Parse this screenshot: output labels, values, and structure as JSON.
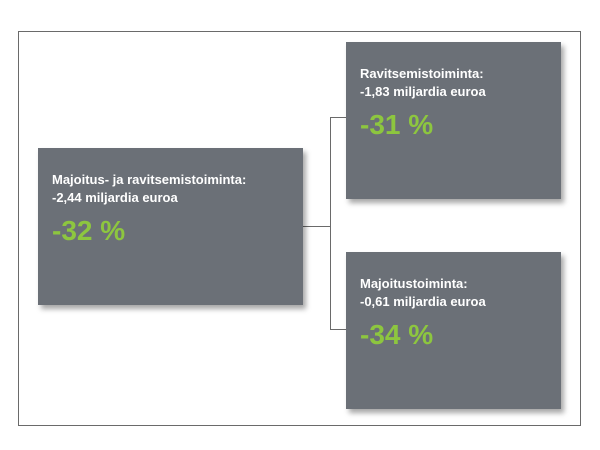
{
  "colors": {
    "box": "#6b7077",
    "percent": "#8dc63f",
    "text": "#ffffff",
    "line": "#6a6a6a"
  },
  "main": {
    "label": "Majoitus- ja ravitsemistoiminta:",
    "amount": "-2,44 miljardia euroa",
    "percent": "-32 %"
  },
  "top": {
    "label": "Ravitsemistoiminta:",
    "amount": "-1,83 miljardia euroa",
    "percent": "-31 %"
  },
  "bottom": {
    "label": "Majoitustoiminta:",
    "amount": "-0,61 miljardia euroa",
    "percent": "-34 %"
  }
}
